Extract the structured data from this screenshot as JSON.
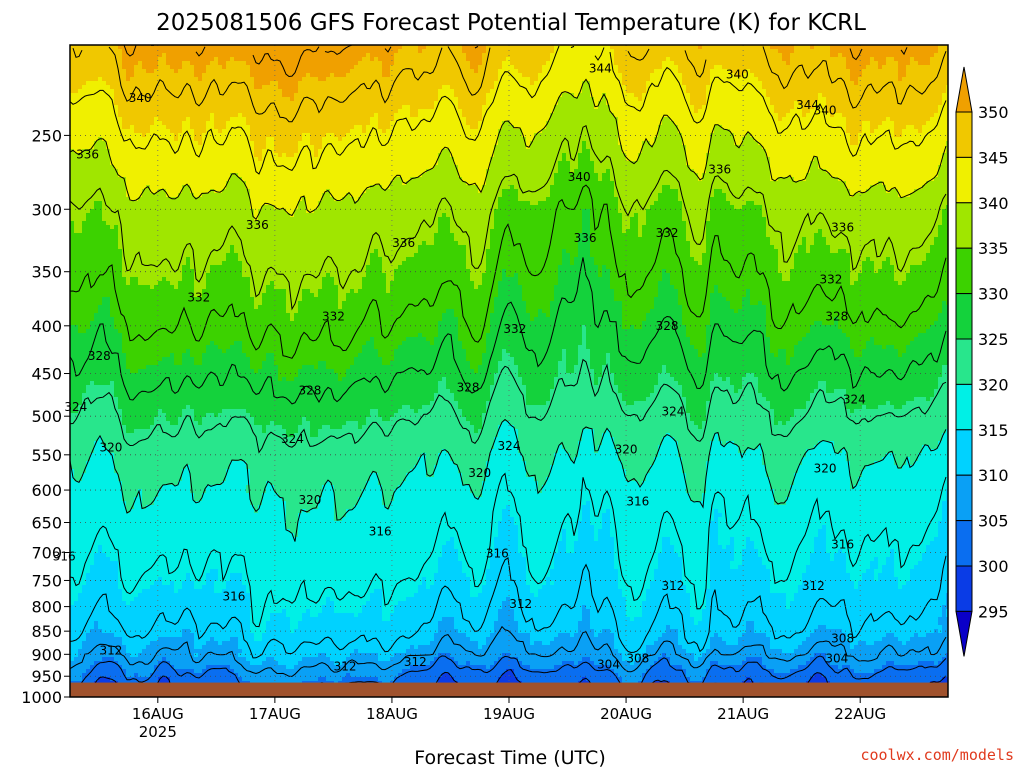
{
  "chart_data": {
    "type": "heatmap",
    "title": "2025081506 GFS Forecast Potential Temperature (K) for KCRL",
    "xlabel": "Forecast Time (UTC)",
    "ylabel": "",
    "x_ticks": [
      "16AUG",
      "17AUG",
      "18AUG",
      "19AUG",
      "20AUG",
      "21AUG",
      "22AUG"
    ],
    "x_tick_sublabel": "2025",
    "x_range_days": [
      15.25,
      22.75
    ],
    "y_ticks": [
      250,
      300,
      350,
      400,
      450,
      500,
      550,
      600,
      650,
      700,
      750,
      800,
      850,
      900,
      950,
      1000
    ],
    "y_range_hPa": [
      200,
      1000
    ],
    "y_scale": "log-pressure",
    "surface_pressure_hPa": 965,
    "colorbar": {
      "levels": [
        295,
        300,
        305,
        310,
        315,
        320,
        325,
        330,
        335,
        340,
        345,
        350
      ],
      "colors": [
        "#0a00c8",
        "#0a3ce6",
        "#0a6ef0",
        "#0aa0f5",
        "#00d2ff",
        "#00f0e6",
        "#28e68c",
        "#14d23c",
        "#3cd200",
        "#a0e600",
        "#f0f000",
        "#f0c800",
        "#f0a000"
      ],
      "extend": "both"
    },
    "contour_interval": 4,
    "contour_labels": [
      {
        "value": 344,
        "day": 19.78,
        "p": 212
      },
      {
        "value": 340,
        "day": 20.95,
        "p": 215
      },
      {
        "value": 344,
        "day": 21.55,
        "p": 232
      },
      {
        "value": 340,
        "day": 21.7,
        "p": 235
      },
      {
        "value": 340,
        "day": 15.85,
        "p": 228
      },
      {
        "value": 336,
        "day": 15.4,
        "p": 262
      },
      {
        "value": 340,
        "day": 19.6,
        "p": 277
      },
      {
        "value": 336,
        "day": 20.8,
        "p": 272
      },
      {
        "value": 336,
        "day": 16.85,
        "p": 312
      },
      {
        "value": 336,
        "day": 18.1,
        "p": 326
      },
      {
        "value": 336,
        "day": 19.65,
        "p": 322
      },
      {
        "value": 332,
        "day": 20.35,
        "p": 318
      },
      {
        "value": 336,
        "day": 21.85,
        "p": 314
      },
      {
        "value": 332,
        "day": 16.35,
        "p": 373
      },
      {
        "value": 332,
        "day": 17.5,
        "p": 391
      },
      {
        "value": 332,
        "day": 19.05,
        "p": 403
      },
      {
        "value": 328,
        "day": 20.35,
        "p": 400
      },
      {
        "value": 332,
        "day": 21.75,
        "p": 357
      },
      {
        "value": 328,
        "day": 21.8,
        "p": 391
      },
      {
        "value": 328,
        "day": 15.5,
        "p": 431
      },
      {
        "value": 328,
        "day": 17.3,
        "p": 469
      },
      {
        "value": 328,
        "day": 18.65,
        "p": 466
      },
      {
        "value": 324,
        "day": 15.3,
        "p": 489
      },
      {
        "value": 324,
        "day": 17.15,
        "p": 529
      },
      {
        "value": 324,
        "day": 19.0,
        "p": 538
      },
      {
        "value": 324,
        "day": 20.4,
        "p": 494
      },
      {
        "value": 324,
        "day": 21.95,
        "p": 480
      },
      {
        "value": 320,
        "day": 15.6,
        "p": 540
      },
      {
        "value": 320,
        "day": 18.75,
        "p": 575
      },
      {
        "value": 320,
        "day": 20.0,
        "p": 543
      },
      {
        "value": 320,
        "day": 21.7,
        "p": 569
      },
      {
        "value": 320,
        "day": 17.3,
        "p": 615
      },
      {
        "value": 316,
        "day": 20.1,
        "p": 617
      },
      {
        "value": 316,
        "day": 17.9,
        "p": 665
      },
      {
        "value": 316,
        "day": 18.9,
        "p": 702
      },
      {
        "value": 316,
        "day": 15.2,
        "p": 707
      },
      {
        "value": 316,
        "day": 21.85,
        "p": 686
      },
      {
        "value": 316,
        "day": 16.65,
        "p": 780
      },
      {
        "value": 312,
        "day": 20.4,
        "p": 760
      },
      {
        "value": 312,
        "day": 21.6,
        "p": 760
      },
      {
        "value": 312,
        "day": 19.1,
        "p": 795
      },
      {
        "value": 308,
        "day": 21.85,
        "p": 866
      },
      {
        "value": 312,
        "day": 15.6,
        "p": 892
      },
      {
        "value": 304,
        "day": 19.85,
        "p": 923
      },
      {
        "value": 308,
        "day": 20.1,
        "p": 909
      },
      {
        "value": 304,
        "day": 21.8,
        "p": 909
      },
      {
        "value": 312,
        "day": 17.6,
        "p": 928
      },
      {
        "value": 312,
        "day": 18.2,
        "p": 917
      }
    ],
    "legend": "colorbar-right",
    "grid": true,
    "credit": "coolwx.com/models"
  }
}
